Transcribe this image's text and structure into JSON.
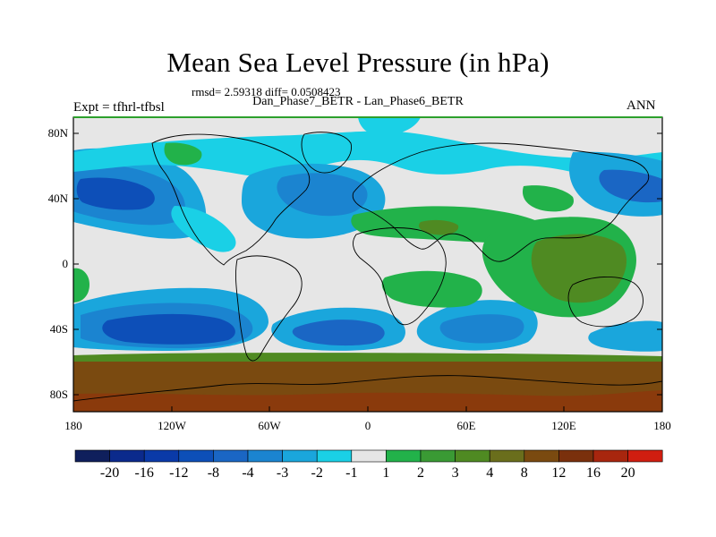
{
  "title": "Mean Sea Level Pressure (in hPa)",
  "rmsd_line": "rmsd= 2.59318 diff= 0.0508423",
  "subtitle": "Dan_Phase7_BETR - Lan_Phase6_BETR",
  "experiment": "Expt = tfhrl-tfbsl",
  "season": "ANN",
  "lat_labels": [
    "80N",
    "40N",
    "0",
    "40S",
    "80S"
  ],
  "lon_labels": [
    "180",
    "120W",
    "60W",
    "0",
    "60E",
    "120E",
    "180"
  ],
  "colorbar": {
    "labels": [
      "-20",
      "-16",
      "-12",
      "-8",
      "-4",
      "-3",
      "-2",
      "-1",
      "1",
      "2",
      "3",
      "4",
      "8",
      "12",
      "16",
      "20"
    ],
    "colors": [
      "#0f1f5c",
      "#0b2a8c",
      "#0a3aa8",
      "#0d4fb8",
      "#1a66c4",
      "#1b84d0",
      "#1aa6dc",
      "#1ad0e6",
      "#e6e6e6",
      "#22b24a",
      "#3a9a34",
      "#4f8a22",
      "#6a6e1c",
      "#7a4a10",
      "#7a300c",
      "#a8260e",
      "#d01e10"
    ]
  },
  "field_colors": {
    "land_outline": "#000000",
    "ocean_neutral": "#e6e6e6",
    "neg1": "#1ad0e6",
    "neg2": "#1aa6dc",
    "neg3": "#1b84d0",
    "neg4": "#1a66c4",
    "neg8": "#0d4fb8",
    "pos1": "#22b24a",
    "pos2": "#3a9a34",
    "pos3": "#4f8a22",
    "pos8": "#7a4a10",
    "pos12": "#8a3a0c"
  }
}
